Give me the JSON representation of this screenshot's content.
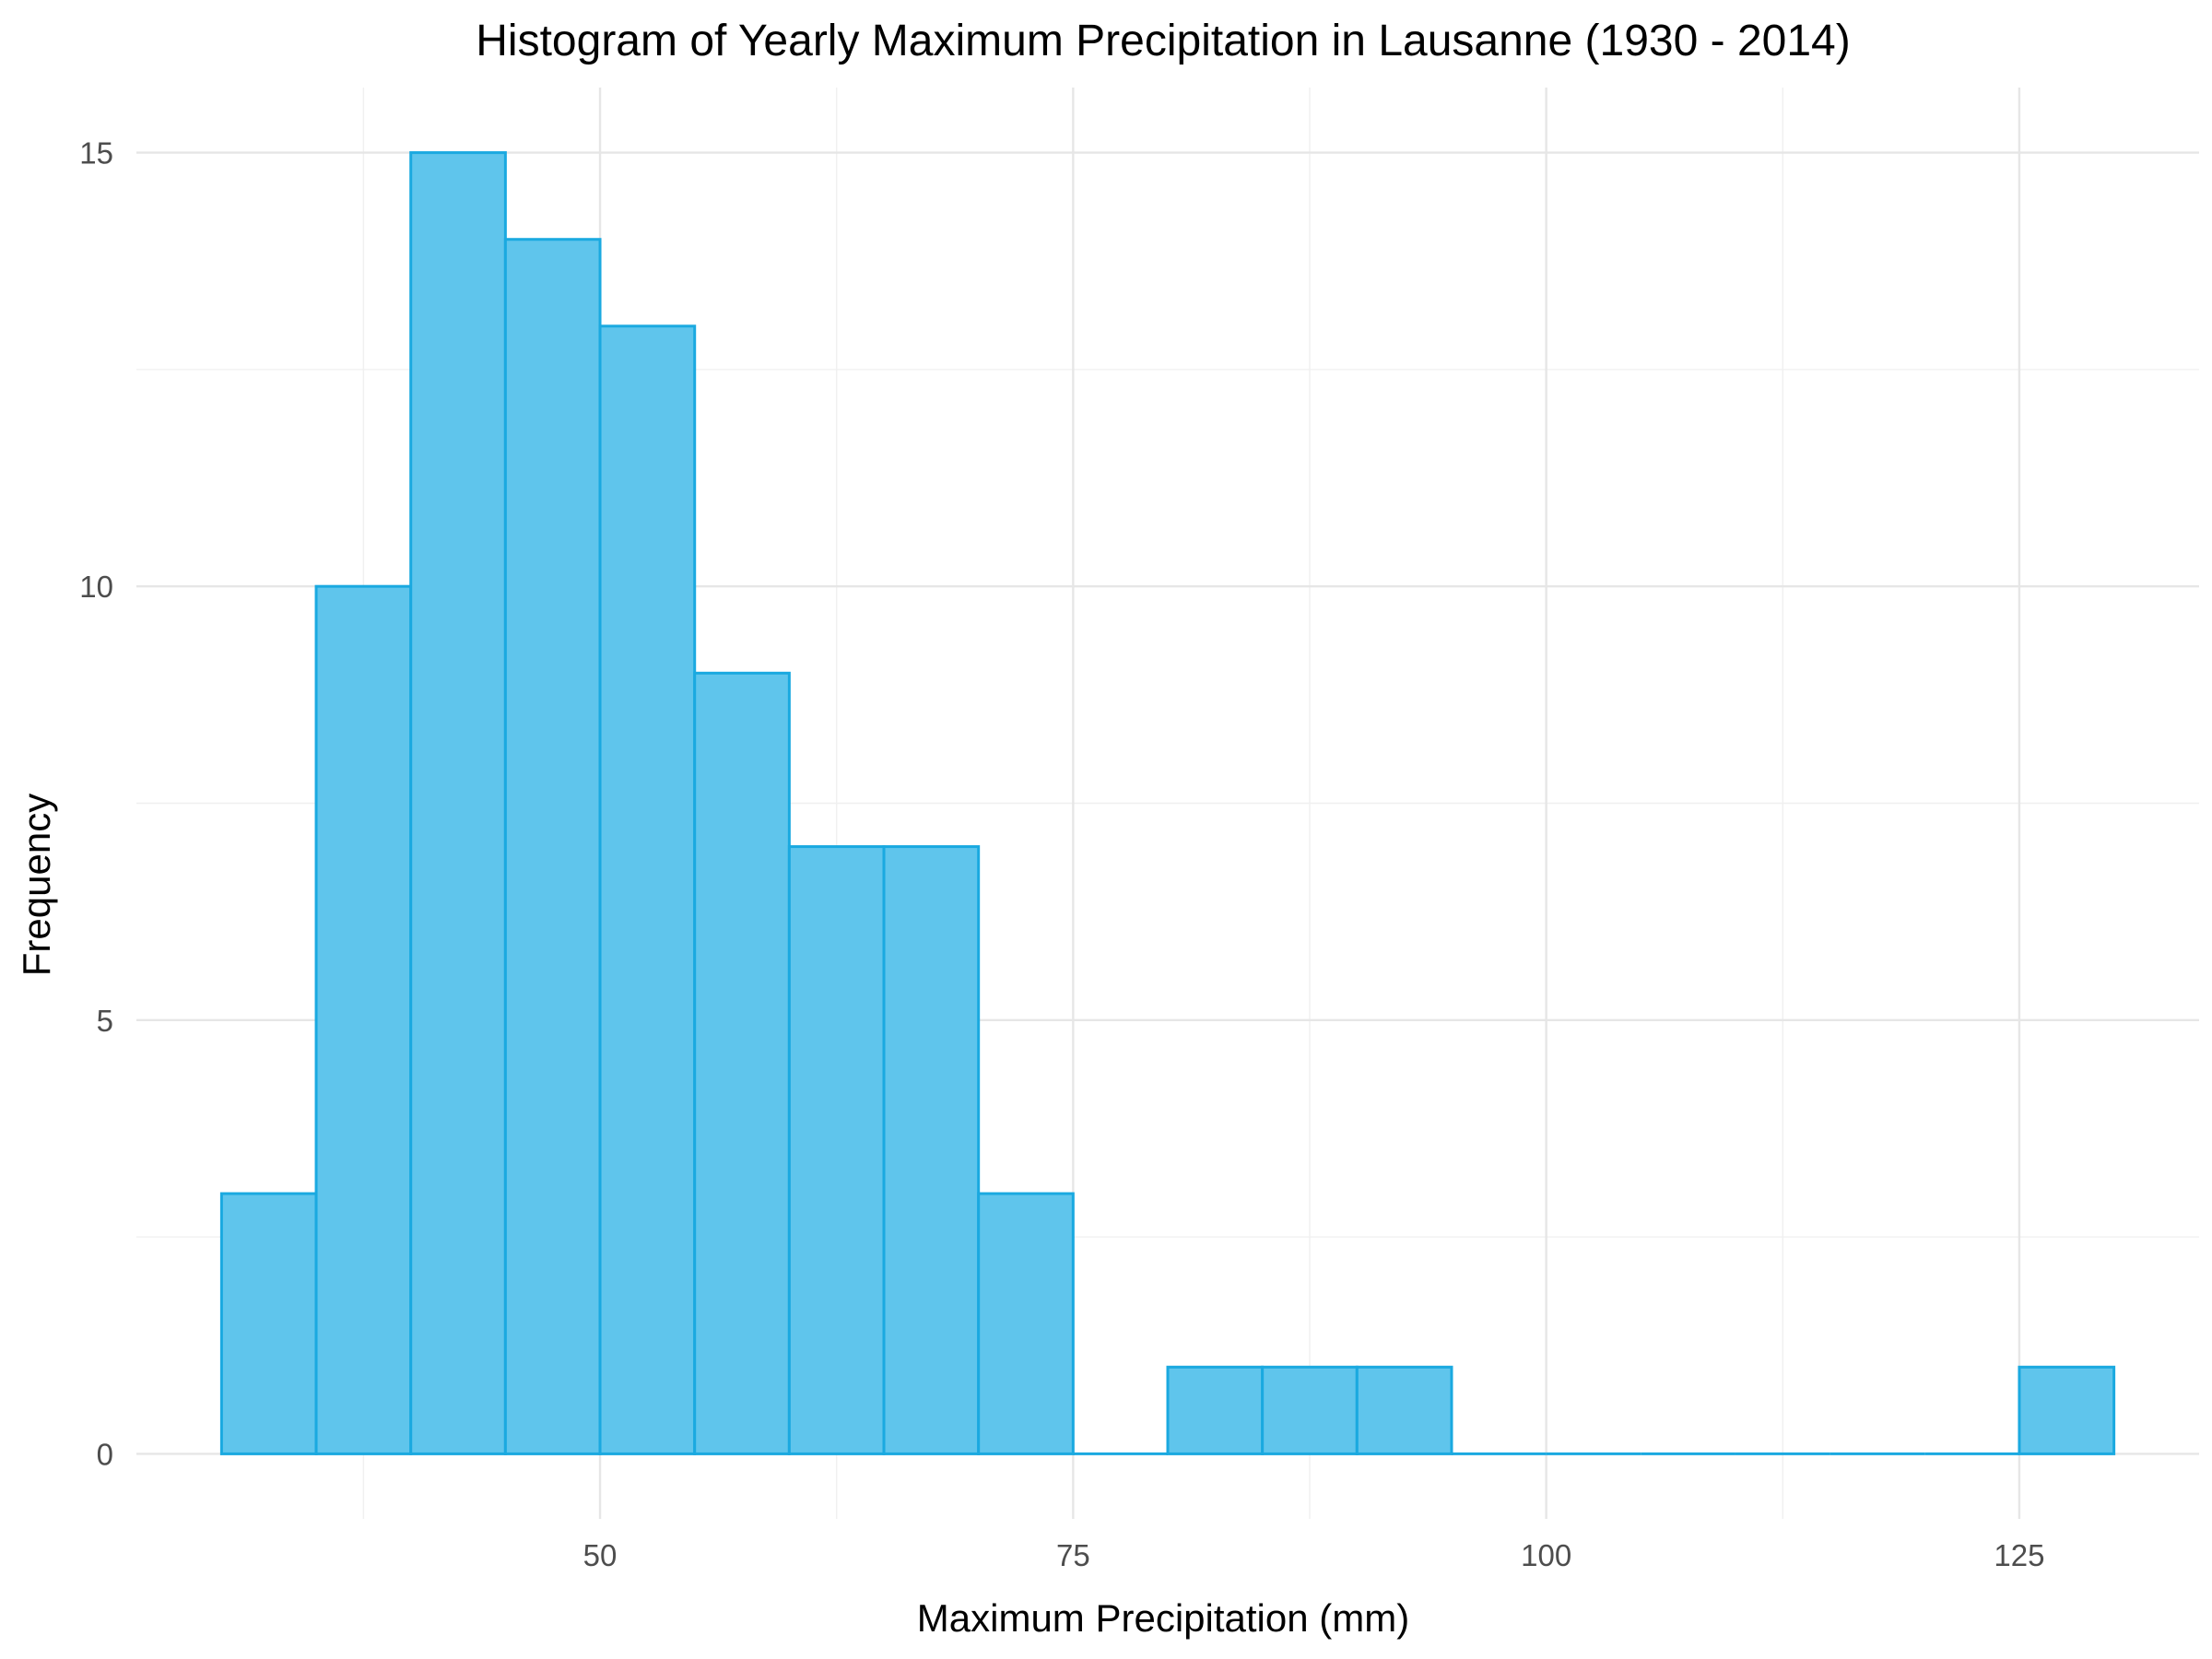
{
  "chart_data": {
    "type": "bar",
    "subtype": "histogram",
    "title": "Histogram of Yearly Maximum Precipitation in Lausanne (1930 - 2014)",
    "xlabel": "Maximum Precipitation (mm)",
    "ylabel": "Frequency",
    "bin_width": 5,
    "bins": [
      {
        "x0": 30,
        "x1": 35,
        "count": 3
      },
      {
        "x0": 35,
        "x1": 40,
        "count": 10
      },
      {
        "x0": 40,
        "x1": 45,
        "count": 15
      },
      {
        "x0": 45,
        "x1": 50,
        "count": 14
      },
      {
        "x0": 50,
        "x1": 55,
        "count": 13
      },
      {
        "x0": 55,
        "x1": 60,
        "count": 9
      },
      {
        "x0": 60,
        "x1": 65,
        "count": 7
      },
      {
        "x0": 65,
        "x1": 70,
        "count": 7
      },
      {
        "x0": 70,
        "x1": 75,
        "count": 3
      },
      {
        "x0": 75,
        "x1": 80,
        "count": 0
      },
      {
        "x0": 80,
        "x1": 85,
        "count": 1
      },
      {
        "x0": 85,
        "x1": 90,
        "count": 1
      },
      {
        "x0": 90,
        "x1": 95,
        "count": 1
      },
      {
        "x0": 95,
        "x1": 100,
        "count": 0
      },
      {
        "x0": 100,
        "x1": 105,
        "count": 0
      },
      {
        "x0": 105,
        "x1": 110,
        "count": 0
      },
      {
        "x0": 110,
        "x1": 115,
        "count": 0
      },
      {
        "x0": 115,
        "x1": 120,
        "count": 0
      },
      {
        "x0": 120,
        "x1": 125,
        "count": 0
      },
      {
        "x0": 125,
        "x1": 130,
        "count": 1
      }
    ],
    "xticks": [
      50,
      75,
      100,
      125
    ],
    "yticks": [
      0,
      5,
      10,
      15
    ],
    "xlim": [
      25.5,
      134.5
    ],
    "ylim": [
      -0.75,
      15.75
    ],
    "grid": true,
    "colors": {
      "fill": "#5fc5ec",
      "outline": "#1aa9e0"
    }
  }
}
